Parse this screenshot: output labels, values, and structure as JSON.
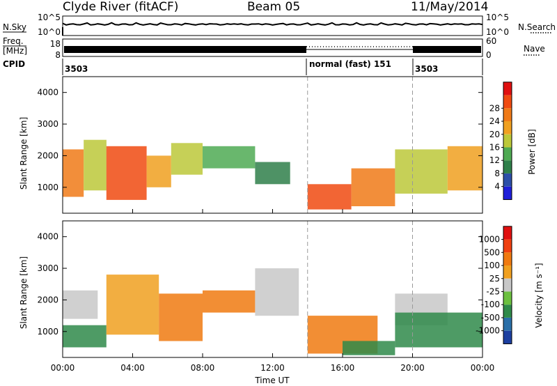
{
  "header": {
    "station": "Clyde River (fitACF)",
    "beam": "Beam 05",
    "date": "11/May/2014"
  },
  "status_panels": {
    "nsky_label": "N.Sky",
    "nsky_ticks": [
      "10^5",
      "10^0"
    ],
    "nsearch_label": "N.Search",
    "nsearch_ticks": [
      "10^5",
      "10^0"
    ],
    "freq_label": "Freq.",
    "freq_unit": "[MHz]",
    "freq_ticks": [
      "18",
      "8"
    ],
    "nave_label": "Nave",
    "nave_ticks": [
      "60",
      "0"
    ],
    "cpid_label": "CPID",
    "cpid_segments": [
      {
        "start_hour": 0,
        "end_hour": 14,
        "label": "3503"
      },
      {
        "start_hour": 14,
        "end_hour": 20,
        "label": "normal (fast) 151"
      },
      {
        "start_hour": 20,
        "end_hour": 24,
        "label": "3503"
      }
    ]
  },
  "chart_data": [
    {
      "type": "heatmap",
      "quantity": "Power",
      "ylabel": "Slant Range [km]",
      "xlabel": "Time UT",
      "xlim_hours": [
        0,
        24
      ],
      "ylim": [
        180,
        4500
      ],
      "y_ticks": [
        1000,
        2000,
        3000,
        4000
      ],
      "x_tick_labels": [
        "00:00",
        "04:00",
        "08:00",
        "12:00",
        "16:00",
        "20:00",
        "00:00"
      ],
      "colorbar": {
        "label": "Power [dB]",
        "ticks": [
          "4",
          "8",
          "12",
          "16",
          "20",
          "24",
          "28"
        ],
        "colors": [
          "#1f1fd9",
          "#2c4fa8",
          "#2f7f4a",
          "#4faa53",
          "#bcc839",
          "#f0a020",
          "#f07a18",
          "#f04a10",
          "#e01010"
        ]
      },
      "echo_regions": [
        {
          "t": [
            0.0,
            1.2
          ],
          "r": [
            700,
            2200
          ],
          "level": 6
        },
        {
          "t": [
            1.2,
            2.5
          ],
          "r": [
            900,
            2500
          ],
          "level": 4
        },
        {
          "t": [
            2.5,
            4.8
          ],
          "r": [
            600,
            2300
          ],
          "level": 7
        },
        {
          "t": [
            4.8,
            6.2
          ],
          "r": [
            1000,
            2000
          ],
          "level": 5
        },
        {
          "t": [
            6.2,
            8.0
          ],
          "r": [
            1400,
            2400
          ],
          "level": 4
        },
        {
          "t": [
            8.0,
            11.0
          ],
          "r": [
            1600,
            2300
          ],
          "level": 3
        },
        {
          "t": [
            11.0,
            13.0
          ],
          "r": [
            1100,
            1800
          ],
          "level": 2
        },
        {
          "t": [
            14.0,
            16.5
          ],
          "r": [
            300,
            1100
          ],
          "level": 7
        },
        {
          "t": [
            16.5,
            19.0
          ],
          "r": [
            400,
            1600
          ],
          "level": 6
        },
        {
          "t": [
            19.0,
            22.0
          ],
          "r": [
            800,
            2200
          ],
          "level": 4
        },
        {
          "t": [
            22.0,
            24.0
          ],
          "r": [
            900,
            2300
          ],
          "level": 5
        }
      ]
    },
    {
      "type": "heatmap",
      "quantity": "Velocity",
      "ylabel": "Slant Range [km]",
      "xlabel": "Time UT",
      "xlim_hours": [
        0,
        24
      ],
      "ylim": [
        180,
        4500
      ],
      "y_ticks": [
        1000,
        2000,
        3000,
        4000
      ],
      "x_tick_labels": [
        "00:00",
        "04:00",
        "08:00",
        "12:00",
        "16:00",
        "20:00",
        "00:00"
      ],
      "colorbar": {
        "label": "Velocity [m s⁻¹]",
        "ticks": [
          "1000",
          "500",
          "100",
          "25",
          "-25",
          "-100",
          "-500",
          "-1000"
        ],
        "colors": [
          "#1c3fa0",
          "#2a6fa8",
          "#2f8a4a",
          "#6cc040",
          "#c8c8c8",
          "#f0a020",
          "#f07a10",
          "#f04010",
          "#e01010"
        ]
      },
      "echo_regions": [
        {
          "t": [
            0.0,
            2.0
          ],
          "r": [
            1400,
            2300
          ],
          "level": 4
        },
        {
          "t": [
            0.0,
            2.5
          ],
          "r": [
            500,
            1200
          ],
          "level": 2
        },
        {
          "t": [
            2.5,
            5.5
          ],
          "r": [
            900,
            2800
          ],
          "level": 5
        },
        {
          "t": [
            5.5,
            8.0
          ],
          "r": [
            700,
            2200
          ],
          "level": 6
        },
        {
          "t": [
            8.0,
            11.0
          ],
          "r": [
            1600,
            2300
          ],
          "level": 6
        },
        {
          "t": [
            11.0,
            13.5
          ],
          "r": [
            1500,
            3000
          ],
          "level": 4
        },
        {
          "t": [
            14.0,
            18.0
          ],
          "r": [
            300,
            1500
          ],
          "level": 6
        },
        {
          "t": [
            16.0,
            19.0
          ],
          "r": [
            250,
            700
          ],
          "level": 2
        },
        {
          "t": [
            19.0,
            22.0
          ],
          "r": [
            1200,
            2200
          ],
          "level": 4
        },
        {
          "t": [
            19.0,
            24.0
          ],
          "r": [
            500,
            1600
          ],
          "level": 2
        }
      ]
    }
  ]
}
